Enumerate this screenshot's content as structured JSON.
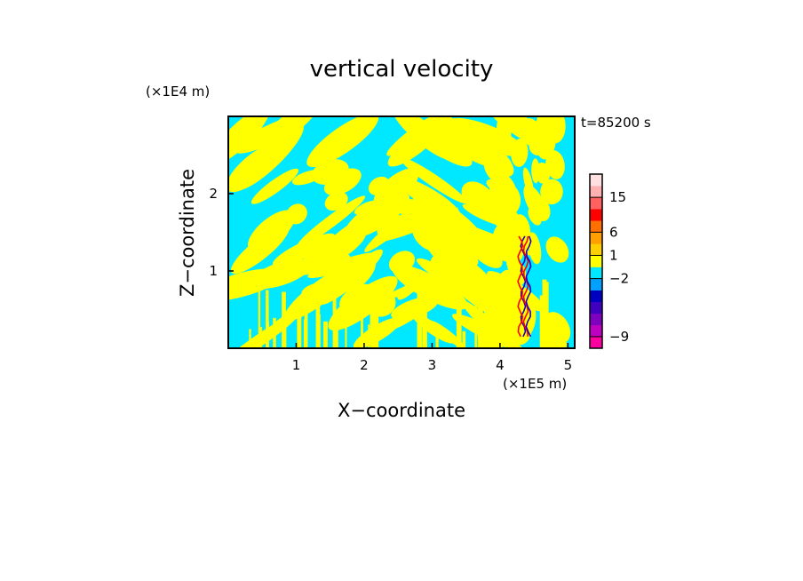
{
  "chart_data": {
    "type": "heatmap",
    "title": "vertical velocity",
    "xlabel": "X−coordinate",
    "ylabel": "Z−coordinate",
    "x_unit": "(×1E5 m)",
    "y_unit": "(×1E4 m)",
    "time_label": "t=85200 s",
    "xlim": [
      0.0,
      5.1
    ],
    "ylim": [
      0.0,
      3.0
    ],
    "x_ticks": [
      {
        "value": 1,
        "label": "1"
      },
      {
        "value": 2,
        "label": "2"
      },
      {
        "value": 3,
        "label": "3"
      },
      {
        "value": 4,
        "label": "4"
      },
      {
        "value": 5,
        "label": "5"
      }
    ],
    "y_ticks": [
      {
        "value": 1,
        "label": "1"
      },
      {
        "value": 2,
        "label": "2"
      }
    ],
    "colorbar": {
      "levels": [
        {
          "color": "#ff00a0"
        },
        {
          "color": "#c000c0"
        },
        {
          "color": "#8000c0"
        },
        {
          "color": "#4000c0"
        },
        {
          "color": "#0000c0"
        },
        {
          "color": "#00a0ff"
        },
        {
          "color": "#00e8ff"
        },
        {
          "color": "#ffff00"
        },
        {
          "color": "#ffd000"
        },
        {
          "color": "#ffa000"
        },
        {
          "color": "#ff7000"
        },
        {
          "color": "#ff0000"
        },
        {
          "color": "#ff6060"
        },
        {
          "color": "#ffb0b0"
        },
        {
          "color": "#ffe0e0"
        }
      ],
      "labels": [
        {
          "after_level": 1,
          "label": "−9"
        },
        {
          "after_level": 6,
          "label": "−2"
        },
        {
          "after_level": 8,
          "label": "1"
        },
        {
          "after_level": 10,
          "label": "6"
        },
        {
          "after_level": 13,
          "label": "15"
        }
      ]
    },
    "field_colors": {
      "negative": "#00e8ff",
      "positive": "#ffff00",
      "strong_up": "#ff0000",
      "strong_down": "#2000c0"
    }
  }
}
